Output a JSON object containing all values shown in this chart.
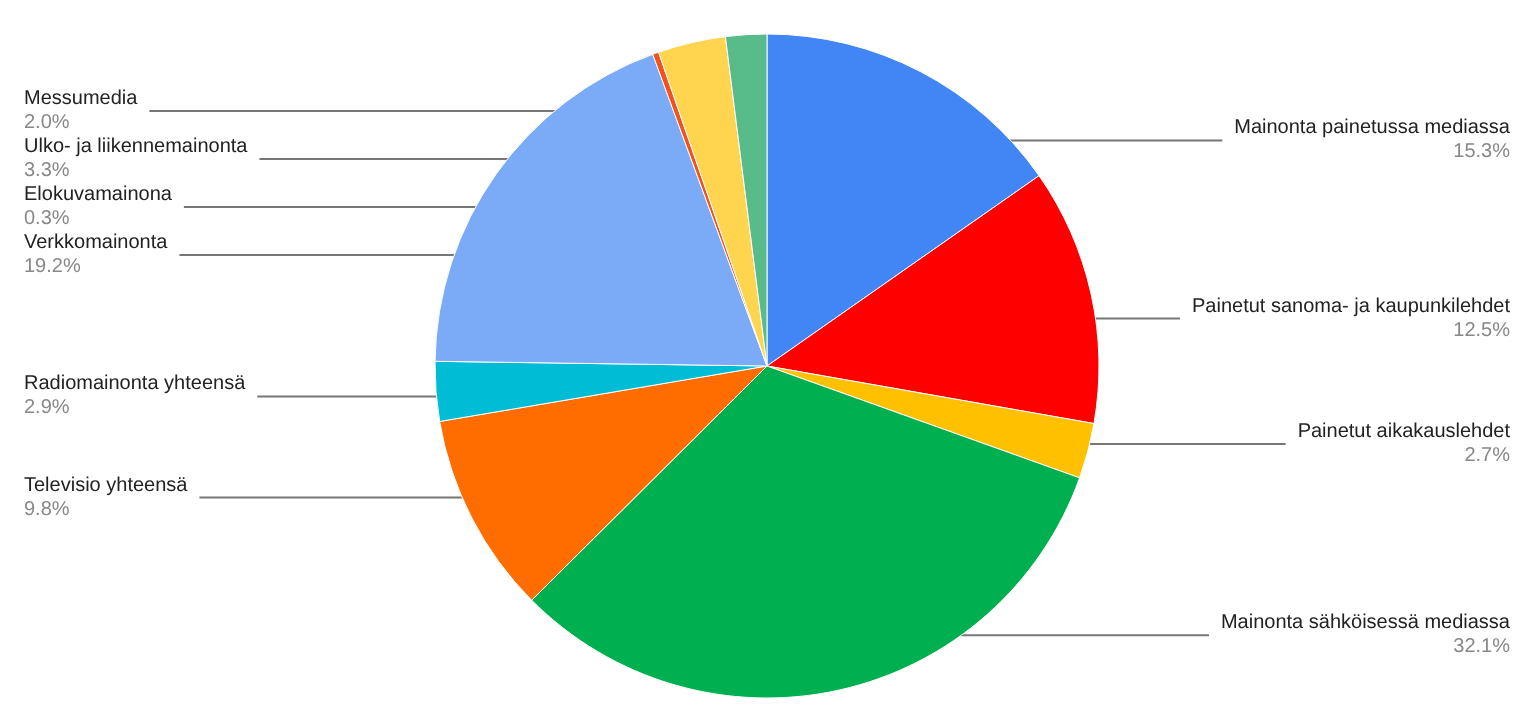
{
  "chart_data": {
    "type": "pie",
    "categories": [
      "Mainonta painetussa mediassa",
      "Painetut sanoma- ja kaupunkilehdet",
      "Painetut aikakauslehdet",
      "Mainonta sähköisessä mediassa",
      "Televisio yhteensä",
      "Radiomainonta yhteensä",
      "Verkkomainonta",
      "Elokuvamainona",
      "Ulko- ja liikennemainonta",
      "Messumedia"
    ],
    "values": [
      15.3,
      12.5,
      2.7,
      32.1,
      9.8,
      2.9,
      19.2,
      0.3,
      3.3,
      2.0
    ],
    "value_labels": [
      "15.3%",
      "12.5%",
      "2.7%",
      "32.1%",
      "9.8%",
      "2.9%",
      "19.2%",
      "0.3%",
      "3.3%",
      "2.0%"
    ],
    "colors": [
      "#4285f4",
      "#ff0000",
      "#ffc000",
      "#00b050",
      "#ff6d00",
      "#00bcd4",
      "#7baaf7",
      "#f4511e",
      "#ffd54f",
      "#57bb8a"
    ],
    "legend": false
  }
}
